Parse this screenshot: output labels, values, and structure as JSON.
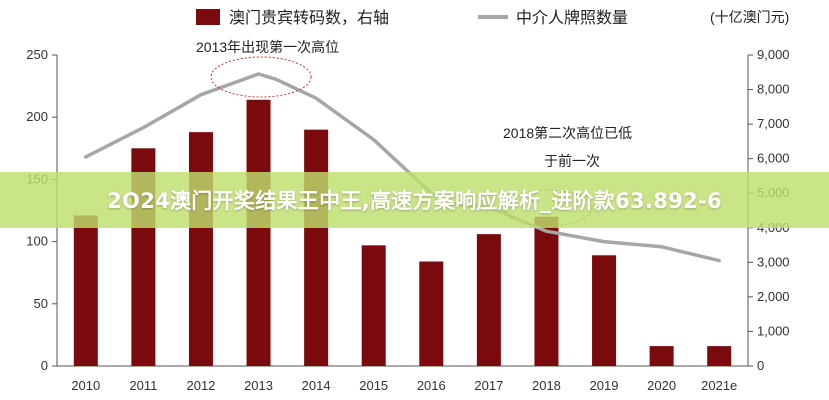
{
  "legend": {
    "bar_label": "澳门贵宾转码数，右轴",
    "line_label": "中介人牌照数量",
    "unit": "(十亿澳门元)"
  },
  "annotations": {
    "peak_2013": "2013年出现第一次高位",
    "peak_2018_line1": "2018第二次高位已低",
    "peak_2018_line2": "于前一次"
  },
  "banner": {
    "text": "2O24澳门开奖结果王中王,高速方案响应解析_进阶款63.892-6"
  },
  "colors": {
    "bar": "#7b0a0e",
    "line": "#a6a6a6",
    "banner": "#bede6e",
    "ellipse": "#c0392b"
  },
  "chart_data": {
    "type": "bar",
    "categories": [
      "2010",
      "2011",
      "2012",
      "2013",
      "2014",
      "2015",
      "2016",
      "2017",
      "2018",
      "2019",
      "2020",
      "2021e"
    ],
    "left_axis": {
      "ylim": [
        0,
        250
      ],
      "ticks": [
        "0",
        "50",
        "100",
        "150",
        "200",
        "250"
      ]
    },
    "right_axis": {
      "ylim": [
        0,
        9000
      ],
      "ticks": [
        "0",
        "1,000",
        "2,000",
        "3,000",
        "4,000",
        "5,000",
        "6,000",
        "7,000",
        "8,000",
        "9,000"
      ]
    },
    "series": [
      {
        "name": "澳门贵宾转码数，右轴",
        "type": "bar",
        "axis": "left",
        "values": [
          121,
          175,
          188,
          214,
          190,
          97,
          84,
          106,
          120,
          89,
          16,
          16
        ]
      },
      {
        "name": "中介人牌照数量",
        "type": "line",
        "axis": "right",
        "x": [
          2010,
          2011,
          2012,
          2013,
          2013.3,
          2014,
          2015,
          2016,
          2016.3,
          2017,
          2018,
          2019,
          2020,
          2021
        ],
        "values": [
          6050,
          6900,
          7850,
          8450,
          8300,
          7750,
          6550,
          5000,
          4700,
          4600,
          3900,
          3600,
          3450,
          3050
        ]
      }
    ],
    "grid": false
  }
}
